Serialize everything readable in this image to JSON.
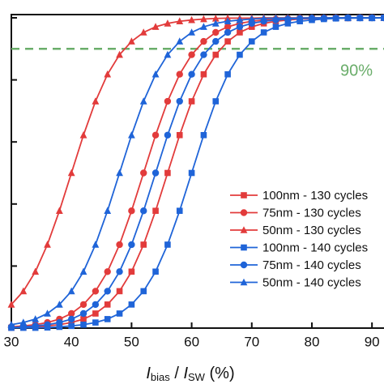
{
  "chart_data": {
    "type": "line",
    "xlabel_parts": [
      "I",
      "bias",
      " / ",
      "I",
      "SW",
      " (%)"
    ],
    "annotation": "90%",
    "hline": 0.9,
    "hline_color": "#6aad6a",
    "x": [
      30,
      32,
      34,
      36,
      38,
      40,
      42,
      44,
      46,
      48,
      50,
      52,
      54,
      56,
      58,
      60,
      62,
      64,
      66,
      68,
      70,
      72,
      74,
      76,
      78,
      80,
      82,
      84,
      86,
      88,
      90,
      92
    ],
    "xlim": [
      30,
      92
    ],
    "xticks": [
      30,
      40,
      50,
      60,
      70,
      80,
      90
    ],
    "ylim": [
      0,
      1
    ],
    "yticks": [
      0,
      0.2,
      0.4,
      0.6,
      0.8,
      1
    ],
    "legend": "right",
    "series": [
      {
        "name": "100nm - 130 cycles",
        "color": "#e23b3b",
        "marker": "square",
        "values": [
          0.001,
          0.002,
          0.004,
          0.007,
          0.011,
          0.018,
          0.029,
          0.047,
          0.076,
          0.119,
          0.182,
          0.269,
          0.378,
          0.5,
          0.622,
          0.731,
          0.818,
          0.881,
          0.924,
          0.953,
          0.971,
          0.982,
          0.989,
          0.993,
          0.996,
          0.998,
          0.999,
          0.999,
          0.999,
          1,
          1,
          1
        ]
      },
      {
        "name": "75nm - 130 cycles",
        "color": "#e23b3b",
        "marker": "circle",
        "values": [
          0.004,
          0.007,
          0.011,
          0.018,
          0.029,
          0.047,
          0.076,
          0.119,
          0.182,
          0.269,
          0.378,
          0.5,
          0.622,
          0.731,
          0.818,
          0.881,
          0.924,
          0.953,
          0.971,
          0.982,
          0.989,
          0.993,
          0.996,
          0.998,
          0.999,
          0.999,
          0.999,
          1,
          1,
          1,
          1,
          1
        ]
      },
      {
        "name": "50nm - 130 cycles",
        "color": "#e23b3b",
        "marker": "triangle",
        "values": [
          0.076,
          0.119,
          0.182,
          0.269,
          0.378,
          0.5,
          0.622,
          0.731,
          0.818,
          0.881,
          0.924,
          0.953,
          0.971,
          0.982,
          0.989,
          0.993,
          0.996,
          0.998,
          0.999,
          0.999,
          0.999,
          1,
          1,
          1,
          1,
          1,
          1,
          1,
          1,
          1,
          1,
          1
        ]
      },
      {
        "name": "100nm - 140 cycles",
        "color": "#1f64d8",
        "marker": "square",
        "values": [
          0.001,
          0.001,
          0.001,
          0.002,
          0.004,
          0.007,
          0.011,
          0.018,
          0.029,
          0.047,
          0.076,
          0.119,
          0.182,
          0.269,
          0.378,
          0.5,
          0.622,
          0.731,
          0.818,
          0.881,
          0.924,
          0.953,
          0.971,
          0.982,
          0.989,
          0.993,
          0.996,
          0.998,
          0.999,
          0.999,
          0.999,
          1
        ]
      },
      {
        "name": "75nm - 140 cycles",
        "color": "#1f64d8",
        "marker": "circle",
        "values": [
          0.002,
          0.004,
          0.007,
          0.011,
          0.018,
          0.029,
          0.047,
          0.076,
          0.119,
          0.182,
          0.269,
          0.378,
          0.5,
          0.622,
          0.731,
          0.818,
          0.881,
          0.924,
          0.953,
          0.971,
          0.982,
          0.989,
          0.993,
          0.996,
          0.998,
          0.999,
          0.999,
          0.999,
          1,
          1,
          1,
          1
        ]
      },
      {
        "name": "50nm - 140 cycles",
        "color": "#1f64d8",
        "marker": "triangle",
        "values": [
          0.011,
          0.018,
          0.029,
          0.047,
          0.076,
          0.119,
          0.182,
          0.269,
          0.378,
          0.5,
          0.622,
          0.731,
          0.818,
          0.881,
          0.924,
          0.953,
          0.971,
          0.982,
          0.989,
          0.993,
          0.996,
          0.998,
          0.999,
          0.999,
          0.999,
          1,
          1,
          1,
          1,
          1,
          1,
          1
        ]
      }
    ]
  }
}
